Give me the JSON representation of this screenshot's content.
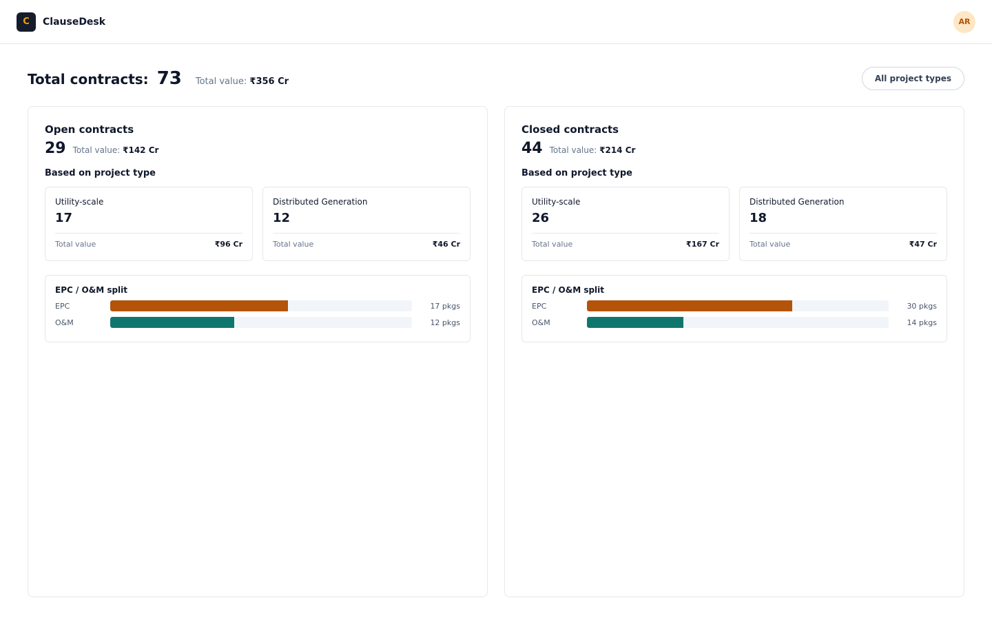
{
  "app": {
    "logo_letter": "C",
    "name": "ClauseDesk",
    "avatar_initials": "AR"
  },
  "summary": {
    "total_label": "Total contracts:",
    "total_count": "73",
    "total_value_label": "Total value:",
    "total_value": "₹356 Cr",
    "filter_label": "All project types"
  },
  "panels": [
    {
      "title": "Open contracts",
      "count": "29",
      "value_label": "Total value:",
      "value": "₹142 Cr",
      "section_label": "Based on project type",
      "types": [
        {
          "name": "Utility-scale",
          "count": "17",
          "value_label": "Total value",
          "value": "₹96 Cr"
        },
        {
          "name": "Distributed Generation",
          "count": "12",
          "value_label": "Total value",
          "value": "₹46 Cr"
        }
      ],
      "split": {
        "title": "EPC / O&M split",
        "bars": [
          {
            "label": "EPC",
            "value": "17 pkgs",
            "fraction": 0.589,
            "color": "#b4530a"
          },
          {
            "label": "O&M",
            "value": "12 pkgs",
            "fraction": 0.411,
            "color": "#0f766e"
          }
        ]
      }
    },
    {
      "title": "Closed contracts",
      "count": "44",
      "value_label": "Total value:",
      "value": "₹214 Cr",
      "section_label": "Based on project type",
      "types": [
        {
          "name": "Utility-scale",
          "count": "26",
          "value_label": "Total value",
          "value": "₹167 Cr"
        },
        {
          "name": "Distributed Generation",
          "count": "18",
          "value_label": "Total value",
          "value": "₹47 Cr"
        }
      ],
      "split": {
        "title": "EPC / O&M split",
        "bars": [
          {
            "label": "EPC",
            "value": "30 pkgs",
            "fraction": 0.68,
            "color": "#b4530a"
          },
          {
            "label": "O&M",
            "value": "14 pkgs",
            "fraction": 0.32,
            "color": "#0f766e"
          }
        ]
      }
    }
  ]
}
